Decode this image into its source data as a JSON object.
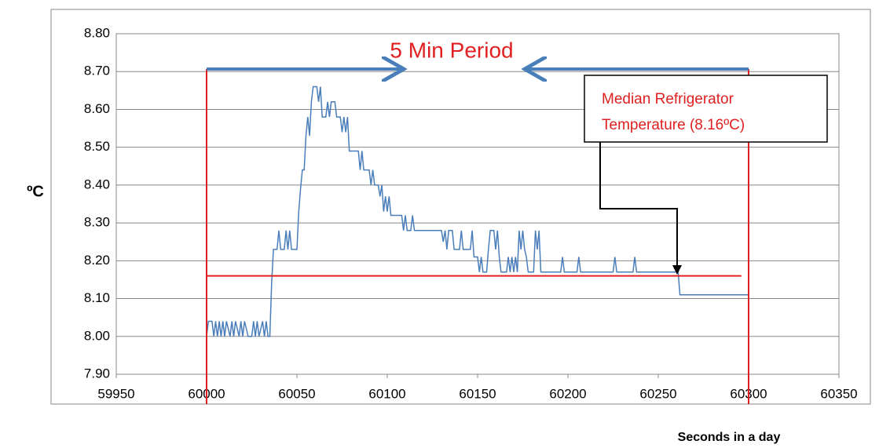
{
  "chart_data": {
    "type": "line",
    "y_label": "ºC",
    "x_label": "Seconds in a day",
    "annotation": "5 Min Period",
    "median_label": [
      "Median Refrigerator",
      "Temperature (8.16ºC)"
    ],
    "median_line": {
      "value": 8.16,
      "x": [
        60000,
        60296
      ],
      "color": "#e02020"
    },
    "period_lines": {
      "x": [
        60000,
        60300
      ],
      "color": "#e02020"
    },
    "xlim": [
      59950,
      60350
    ],
    "xticks": [
      59950,
      60000,
      60050,
      60100,
      60150,
      60200,
      60250,
      60300,
      60350
    ],
    "ylim": [
      7.9,
      8.8
    ],
    "yticks": [
      {
        "value": 7.9,
        "label": "7.90"
      },
      {
        "value": 8,
        "label": "8.00"
      },
      {
        "value": 8.1,
        "label": "8.10"
      },
      {
        "value": 8.2,
        "label": "8.20"
      },
      {
        "value": 8.3,
        "label": "8.30"
      },
      {
        "value": 8.4,
        "label": "8.40"
      },
      {
        "value": 8.5,
        "label": "8.50"
      },
      {
        "value": 8.6,
        "label": "8.60"
      },
      {
        "value": 8.7,
        "label": "8.70"
      },
      {
        "value": 8.8,
        "label": "8.80"
      }
    ],
    "grid": true,
    "series": [
      {
        "color": "#4a7ebb",
        "x": [
          60000,
          60001,
          60003,
          60004,
          60005,
          60006,
          60007,
          60008,
          60009,
          60010,
          60011,
          60013,
          60014,
          60015,
          60016,
          60018,
          60019,
          60020,
          60021,
          60023,
          60025,
          60026,
          60027,
          60028,
          60029,
          60031,
          60032,
          60033,
          60034,
          60035,
          60036,
          60037,
          60039,
          60040,
          60041,
          60043,
          60044,
          60045,
          60046,
          60047,
          60050,
          60051,
          60052,
          60053,
          60054,
          60055,
          60056,
          60057,
          60058,
          60059,
          60061,
          60062,
          60063,
          60064,
          60066,
          60067,
          60068,
          60069,
          60071,
          60072,
          60074,
          60075,
          60076,
          60077,
          60078,
          60079,
          60084,
          60085,
          60086,
          60087,
          60090,
          60091,
          60092,
          60093,
          60095,
          60096,
          60097,
          60098,
          60099,
          60100,
          60101,
          60102,
          60108,
          60109,
          60110,
          60111,
          60113,
          60114,
          60115,
          60130,
          60131,
          60132,
          60133,
          60134,
          60136,
          60137,
          60140,
          60141,
          60142,
          60146,
          60147,
          60148,
          60150,
          60151,
          60152,
          60153,
          60155,
          60156,
          60157,
          60159,
          60160,
          60161,
          60162,
          60163,
          60166,
          60167,
          60168,
          60169,
          60170,
          60171,
          60172,
          60173,
          60174,
          60175,
          60176,
          60177,
          60178,
          60181,
          60182,
          60183,
          60184,
          60185,
          60196,
          60197,
          60198,
          60205,
          60206,
          60207,
          60225,
          60226,
          60227,
          60236,
          60237,
          60238,
          60261,
          60262,
          60300
        ],
        "values": [
          8,
          8.04,
          8.04,
          8,
          8.04,
          8,
          8.04,
          8,
          8.04,
          8,
          8.04,
          8,
          8.04,
          8,
          8.04,
          8,
          8.04,
          8,
          8.04,
          8,
          8,
          8.04,
          8,
          8.04,
          8,
          8.04,
          8,
          8.04,
          8,
          8,
          8.14,
          8.23,
          8.23,
          8.28,
          8.23,
          8.23,
          8.28,
          8.23,
          8.28,
          8.23,
          8.23,
          8.33,
          8.39,
          8.44,
          8.44,
          8.53,
          8.58,
          8.53,
          8.62,
          8.66,
          8.66,
          8.62,
          8.66,
          8.58,
          8.58,
          8.62,
          8.58,
          8.62,
          8.62,
          8.58,
          8.58,
          8.54,
          8.58,
          8.54,
          8.58,
          8.49,
          8.49,
          8.44,
          8.49,
          8.44,
          8.44,
          8.4,
          8.44,
          8.4,
          8.4,
          8.37,
          8.4,
          8.33,
          8.37,
          8.33,
          8.37,
          8.32,
          8.32,
          8.28,
          8.32,
          8.28,
          8.28,
          8.32,
          8.28,
          8.28,
          8.25,
          8.28,
          8.23,
          8.28,
          8.28,
          8.23,
          8.23,
          8.28,
          8.23,
          8.23,
          8.28,
          8.21,
          8.21,
          8.17,
          8.21,
          8.17,
          8.17,
          8.23,
          8.28,
          8.28,
          8.23,
          8.28,
          8.21,
          8.17,
          8.17,
          8.21,
          8.17,
          8.21,
          8.17,
          8.21,
          8.17,
          8.28,
          8.23,
          8.28,
          8.23,
          8.21,
          8.17,
          8.17,
          8.28,
          8.23,
          8.28,
          8.17,
          8.17,
          8.21,
          8.17,
          8.17,
          8.21,
          8.17,
          8.17,
          8.21,
          8.17,
          8.17,
          8.21,
          8.17,
          8.17,
          8.11,
          8.11
        ]
      }
    ]
  }
}
